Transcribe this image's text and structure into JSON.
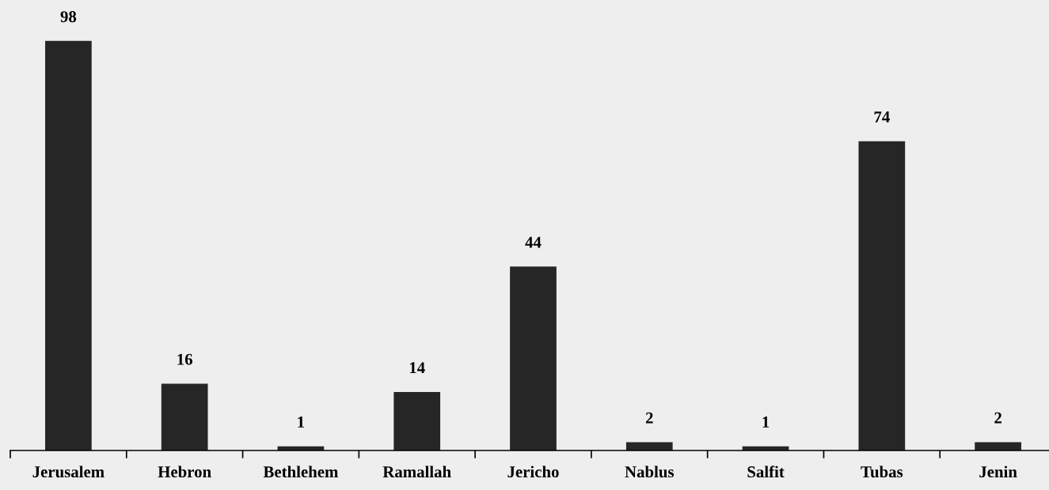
{
  "chart_data": {
    "type": "bar",
    "categories": [
      "Jerusalem",
      "Hebron",
      "Bethlehem",
      "Ramallah",
      "Jericho",
      "Nablus",
      "Salfit",
      "Tubas",
      "Jenin"
    ],
    "values": [
      98,
      16,
      1,
      14,
      44,
      2,
      1,
      74,
      2
    ],
    "color": "#262626",
    "data_labels": true,
    "grid": false,
    "legend": false,
    "tick_labels": "x"
  }
}
